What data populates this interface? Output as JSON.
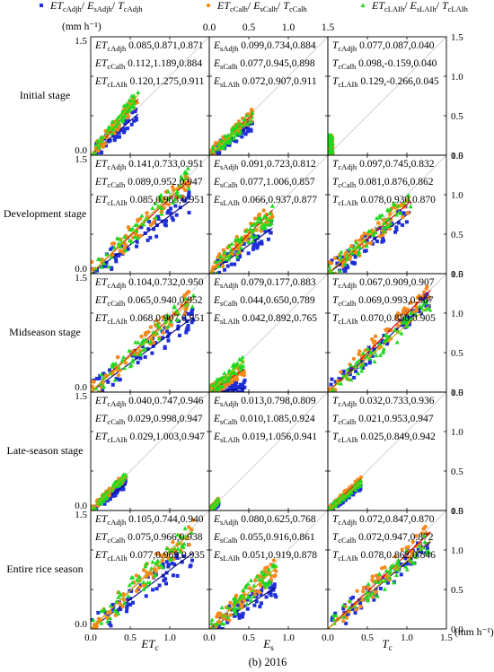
{
  "legend": [
    {
      "base": "ET",
      "sub": "cAdjh",
      "rest": [
        [
          "E",
          "sAdjh"
        ],
        [
          "T",
          "cAdjh"
        ]
      ],
      "marker": "square",
      "color": "#1f2fd8"
    },
    {
      "base": "ET",
      "sub": "cCalh",
      "rest": [
        [
          "E",
          "sCalh"
        ],
        [
          "T",
          "cCalh"
        ]
      ],
      "marker": "circle",
      "color": "#f5891c"
    },
    {
      "base": "ET",
      "sub": "cLAIh",
      "rest": [
        [
          "E",
          "sLAIh"
        ],
        [
          "T",
          "cLAIh"
        ]
      ],
      "marker": "triangle",
      "color": "#1fd81f"
    }
  ],
  "units_label": "(mm h⁻¹)",
  "caption": "(b) 2016",
  "col_labels": [
    [
      "ET",
      "c"
    ],
    [
      "E",
      "s"
    ],
    [
      "T",
      "c"
    ]
  ],
  "ticks": [
    "0.0",
    "0.5",
    "1.0",
    "1.5"
  ],
  "row_labels": [
    "Initial stage",
    "Development stage",
    "Midseason stage",
    "Late-season stage",
    "Entire rice season"
  ],
  "colors": {
    "adj": "#1f2fd8",
    "cal": "#f5891c",
    "lai": "#1fd81f",
    "fit_adj": "#00007a",
    "fit_cal": "#d40000",
    "fit_lai": "#c8b400",
    "one_to_one": "#c8c8c8"
  },
  "chart_data": {
    "type": "scatter",
    "xlabel": [
      "ETc",
      "Es",
      "Tc"
    ],
    "xlim": [
      0,
      1.5
    ],
    "ylim": [
      0,
      1.5
    ],
    "series": [
      "ETcAdjh/EsAdjh/TcAdjh",
      "ETcCalh/EsCalh/TcCalh",
      "ETcLAIh/EsLAIh/TcLAIh"
    ],
    "panels": [
      {
        "row": 0,
        "col": 0,
        "prefix": "ET",
        "subs": [
          "cAdjh",
          "cCalh",
          "cLAIh"
        ],
        "stats": [
          "0.085,0.871,0.871",
          "0.112,1.189,0.884",
          "0.120,1.275,0.911"
        ],
        "xmax": 0.6,
        "spread": 0.09
      },
      {
        "row": 0,
        "col": 1,
        "prefix": "E",
        "subs": [
          "sAdjh",
          "sCalh",
          "sLAIh"
        ],
        "stats": [
          "0.099,0.734,0.884",
          "0.077,0.945,0.898",
          "0.072,0.907,0.911"
        ],
        "xmax": 0.55,
        "spread": 0.08
      },
      {
        "row": 0,
        "col": 2,
        "prefix": "T",
        "subs": [
          "cAdjh",
          "cCalh",
          "cLAIh"
        ],
        "stats": [
          "0.077,0.087,0.040",
          "0.098,-0.159,0.040",
          "0.129,-0.266,0.045"
        ],
        "xmax": 0.06,
        "spread": 0.15
      },
      {
        "row": 1,
        "col": 0,
        "prefix": "ET",
        "subs": [
          "cAdjh",
          "cCalh",
          "cLAIh"
        ],
        "stats": [
          "0.141,0.733,0.951",
          "0.089,0.952,0.947",
          "0.085,0.983,0.951"
        ],
        "xmax": 1.25,
        "spread": 0.14
      },
      {
        "row": 1,
        "col": 1,
        "prefix": "E",
        "subs": [
          "sAdjh",
          "sCalh",
          "sLAIh"
        ],
        "stats": [
          "0.091,0.723,0.812",
          "0.077,1.006,0.857",
          "0.066,0.937,0.877"
        ],
        "xmax": 0.8,
        "spread": 0.12
      },
      {
        "row": 1,
        "col": 2,
        "prefix": "T",
        "subs": [
          "cAdjh",
          "cCalh",
          "cLAIh"
        ],
        "stats": [
          "0.097,0.745,0.832",
          "0.081,0.876,0.862",
          "0.078,0.930,0.870"
        ],
        "xmax": 1.05,
        "spread": 0.13
      },
      {
        "row": 2,
        "col": 0,
        "prefix": "ET",
        "subs": [
          "cAdjh",
          "cCalh",
          "cLAIh"
        ],
        "stats": [
          "0.104,0.732,0.950",
          "0.065,0.940,0.952",
          "0.068,0.907,0.951"
        ],
        "xmax": 1.3,
        "spread": 0.13
      },
      {
        "row": 2,
        "col": 1,
        "prefix": "E",
        "subs": [
          "sAdjh",
          "sCalh",
          "sLAIh"
        ],
        "stats": [
          "0.079,0.177,0.883",
          "0.044,0.650,0.789",
          "0.042,0.892,0.765"
        ],
        "xmax": 0.45,
        "spread": 0.08
      },
      {
        "row": 2,
        "col": 2,
        "prefix": "T",
        "subs": [
          "cAdjh",
          "cCalh",
          "cLAIh"
        ],
        "stats": [
          "0.067,0.909,0.907",
          "0.069,0.993,0.907",
          "0.070,0.850,0.905"
        ],
        "xmax": 1.3,
        "spread": 0.12
      },
      {
        "row": 3,
        "col": 0,
        "prefix": "ET",
        "subs": [
          "cAdjh",
          "cCalh",
          "cLAIh"
        ],
        "stats": [
          "0.040,0.747,0.946",
          "0.029,0.998,0.947",
          "0.029,1.003,0.947"
        ],
        "xmax": 0.45,
        "spread": 0.05
      },
      {
        "row": 3,
        "col": 1,
        "prefix": "E",
        "subs": [
          "sAdjh",
          "sCalh",
          "sLAIh"
        ],
        "stats": [
          "0.013,0.798,0.809",
          "0.010,1.085,0.924",
          "0.019,1.056,0.941"
        ],
        "xmax": 0.12,
        "spread": 0.03
      },
      {
        "row": 3,
        "col": 2,
        "prefix": "T",
        "subs": [
          "cAdjh",
          "cCalh",
          "cLAIh"
        ],
        "stats": [
          "0.032,0.733,0.936",
          "0.021,0.953,0.947",
          "0.025,0.849,0.942"
        ],
        "xmax": 0.42,
        "spread": 0.04
      },
      {
        "row": 4,
        "col": 0,
        "prefix": "ET",
        "subs": [
          "cAdjh",
          "cCalh",
          "cLAIh"
        ],
        "stats": [
          "0.105,0.744,0.940",
          "0.075,0.966,0.938",
          "0.077,0.969,0.935"
        ],
        "xmax": 1.3,
        "spread": 0.15
      },
      {
        "row": 4,
        "col": 1,
        "prefix": "E",
        "subs": [
          "sAdjh",
          "sCalh",
          "sLAIh"
        ],
        "stats": [
          "0.080,0.625,0.768",
          "0.055,0.916,0.861",
          "0.051,0.919,0.878"
        ],
        "xmax": 0.85,
        "spread": 0.13
      },
      {
        "row": 4,
        "col": 2,
        "prefix": "T",
        "subs": [
          "cAdjh",
          "cCalh",
          "cLAIh"
        ],
        "stats": [
          "0.072,0.847,0.870",
          "0.072,0.947,0.872",
          "0.078,0.862,0.846"
        ],
        "xmax": 1.3,
        "spread": 0.14
      }
    ]
  }
}
